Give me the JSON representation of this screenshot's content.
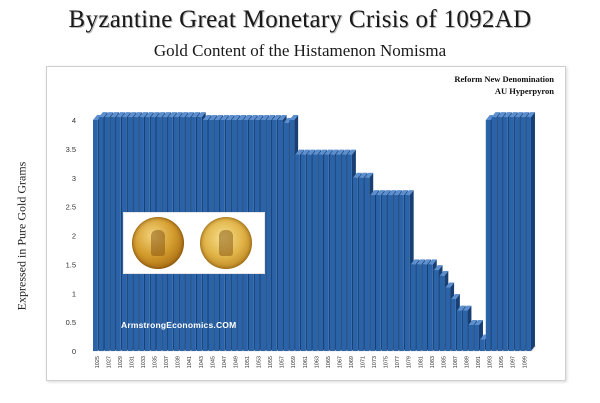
{
  "chart_data": {
    "type": "bar",
    "title": "Byzantine Great Monetary Crisis of 1092AD",
    "subtitle": "Gold Content of the Histamenon Nomisma",
    "ylabel": "Expressed in Pure Gold Grams",
    "xlabel": "",
    "ylim": [
      0,
      4
    ],
    "yticks": [
      "0",
      "0.5",
      "1",
      "1.5",
      "2",
      "2.5",
      "3",
      "3.5",
      "4"
    ],
    "grid": false,
    "bar_color": "#2b63a8",
    "categories": [
      "1025",
      "1026",
      "1027",
      "1028",
      "1029",
      "1030",
      "1031",
      "1032",
      "1033",
      "1034",
      "1035",
      "1036",
      "1037",
      "1038",
      "1039",
      "1040",
      "1041",
      "1042",
      "1043",
      "1044",
      "1045",
      "1046",
      "1047",
      "1048",
      "1049",
      "1050",
      "1051",
      "1052",
      "1053",
      "1054",
      "1055",
      "1056",
      "1057",
      "1058",
      "1059",
      "1060",
      "1061",
      "1062",
      "1063",
      "1064",
      "1065",
      "1066",
      "1067",
      "1068",
      "1069",
      "1070",
      "1071",
      "1072",
      "1073",
      "1074",
      "1075",
      "1076",
      "1077",
      "1078",
      "1079",
      "1080",
      "1081",
      "1082",
      "1083",
      "1084",
      "1085",
      "1086",
      "1087",
      "1088",
      "1089",
      "1090",
      "1091",
      "1092",
      "1093",
      "1094",
      "1095",
      "1096",
      "1097",
      "1098",
      "1099",
      "1100"
    ],
    "xticks_shown": [
      "1025",
      "1027",
      "1029",
      "1031",
      "1033",
      "1035",
      "1037",
      "1039",
      "1041",
      "1043",
      "1045",
      "1047",
      "1049",
      "1051",
      "1053",
      "1055",
      "1057",
      "1059",
      "1061",
      "1063",
      "1065",
      "1067",
      "1069",
      "1071",
      "1073",
      "1075",
      "1077",
      "1079",
      "1081",
      "1083",
      "1085",
      "1087",
      "1089",
      "1091",
      "1093",
      "1095",
      "1097",
      "1099"
    ],
    "values": [
      4.0,
      4.05,
      4.05,
      4.05,
      4.05,
      4.05,
      4.05,
      4.05,
      4.05,
      4.05,
      4.05,
      4.05,
      4.05,
      4.05,
      4.05,
      4.05,
      4.05,
      4.05,
      4.05,
      4.0,
      4.0,
      4.0,
      4.0,
      4.0,
      4.0,
      4.0,
      4.0,
      4.0,
      4.0,
      4.0,
      4.0,
      4.0,
      4.0,
      3.95,
      4.0,
      3.4,
      3.4,
      3.4,
      3.4,
      3.4,
      3.4,
      3.4,
      3.4,
      3.4,
      3.4,
      3.0,
      3.0,
      3.0,
      2.7,
      2.7,
      2.7,
      2.7,
      2.7,
      2.7,
      2.7,
      1.5,
      1.5,
      1.5,
      1.5,
      1.4,
      1.3,
      1.1,
      0.9,
      0.7,
      0.7,
      0.45,
      0.45,
      0.2,
      4.0,
      4.05,
      4.05,
      4.05,
      4.05,
      4.05,
      4.05,
      4.05
    ],
    "annotations": [
      "Reform  New Denomination",
      "AU Hyperpyron"
    ],
    "watermark": "ArmstrongEconomics.COM"
  }
}
